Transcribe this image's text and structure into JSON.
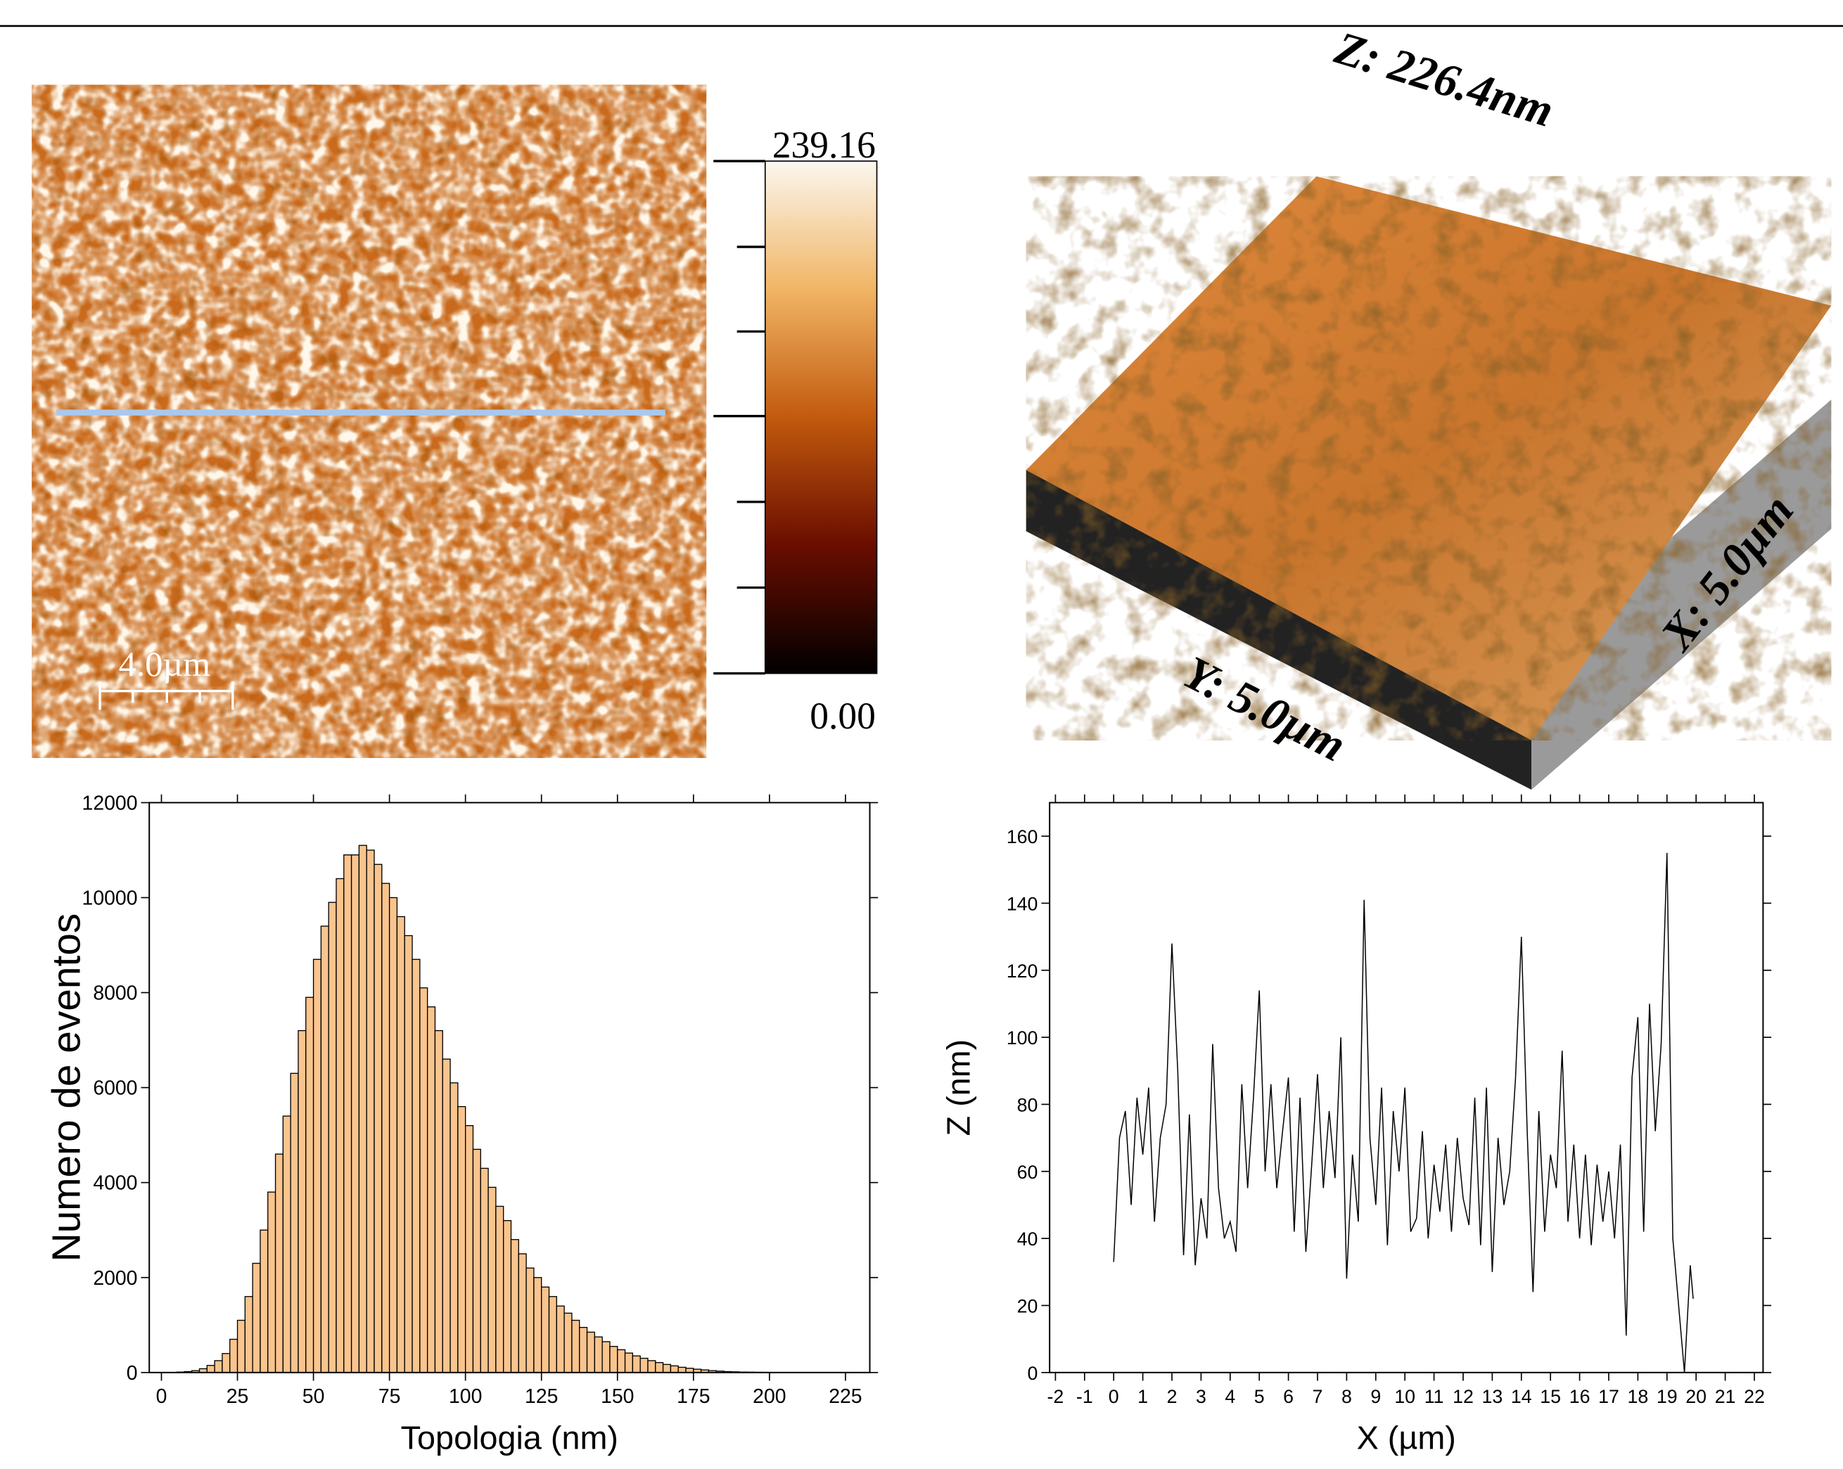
{
  "afm_map": {
    "scale_max": "239.16",
    "scale_min": "0.00",
    "scale_bar": "4.0µm"
  },
  "afm_3d": {
    "z_label": "Z: 226.4nm",
    "y_label": "Y: 5.0µm",
    "x_label": "X: 5.0µm"
  },
  "chart_data": [
    {
      "type": "histogram",
      "xlabel": "Topologia (nm)",
      "ylabel": "Numero de eventos",
      "color": "#f9c48d",
      "bins": [
        5,
        7.5,
        10,
        12.5,
        15,
        17.5,
        20,
        22.5,
        25,
        27.5,
        30,
        32.5,
        35,
        37.5,
        40,
        42.5,
        45,
        47.5,
        50,
        52.5,
        55,
        57.5,
        60,
        62.5,
        65,
        67.5,
        70,
        72.5,
        75,
        77.5,
        80,
        82.5,
        85,
        87.5,
        90,
        92.5,
        95,
        97.5,
        100,
        102.5,
        105,
        107.5,
        110,
        112.5,
        115,
        117.5,
        120,
        122.5,
        125,
        127.5,
        130,
        132.5,
        135,
        137.5,
        140,
        142.5,
        145,
        147.5,
        150,
        152.5,
        155,
        157.5,
        160,
        162.5,
        165,
        167.5,
        170,
        172.5,
        175,
        177.5,
        180,
        182.5,
        185,
        187.5,
        190,
        192.5,
        195,
        197.5,
        200
      ],
      "values": [
        10,
        20,
        40,
        80,
        150,
        250,
        400,
        700,
        1100,
        1600,
        2300,
        3000,
        3800,
        4600,
        5400,
        6300,
        7200,
        7900,
        8700,
        9400,
        9900,
        10400,
        10900,
        10900,
        11100,
        11000,
        10700,
        10300,
        10000,
        9600,
        9200,
        8700,
        8100,
        7700,
        7200,
        6600,
        6100,
        5600,
        5200,
        4700,
        4300,
        3900,
        3500,
        3200,
        2800,
        2500,
        2200,
        2000,
        1800,
        1600,
        1400,
        1250,
        1100,
        950,
        850,
        750,
        650,
        550,
        480,
        410,
        350,
        300,
        250,
        210,
        170,
        140,
        110,
        90,
        70,
        55,
        40,
        30,
        20,
        15,
        10,
        8,
        5,
        3
      ],
      "xlim": [
        -4,
        233
      ],
      "xticks": [
        0,
        25,
        50,
        75,
        100,
        125,
        150,
        175,
        200,
        225
      ],
      "ylim": [
        0,
        12000
      ],
      "yticks": [
        0,
        2000,
        4000,
        6000,
        8000,
        10000,
        12000
      ]
    },
    {
      "type": "line",
      "xlabel": "X (µm)",
      "ylabel": "Z (nm)",
      "color": "#000000",
      "x": [
        0,
        0.2,
        0.4,
        0.6,
        0.8,
        1.0,
        1.2,
        1.4,
        1.6,
        1.8,
        2.0,
        2.2,
        2.4,
        2.6,
        2.8,
        3.0,
        3.2,
        3.4,
        3.6,
        3.8,
        4.0,
        4.2,
        4.4,
        4.6,
        4.8,
        5.0,
        5.2,
        5.4,
        5.6,
        5.8,
        6.0,
        6.2,
        6.4,
        6.6,
        6.8,
        7.0,
        7.2,
        7.4,
        7.6,
        7.8,
        8.0,
        8.2,
        8.4,
        8.6,
        8.8,
        9.0,
        9.2,
        9.4,
        9.6,
        9.8,
        10.0,
        10.2,
        10.4,
        10.6,
        10.8,
        11.0,
        11.2,
        11.4,
        11.6,
        11.8,
        12.0,
        12.2,
        12.4,
        12.6,
        12.8,
        13.0,
        13.2,
        13.4,
        13.6,
        13.8,
        14.0,
        14.2,
        14.4,
        14.6,
        14.8,
        15.0,
        15.2,
        15.4,
        15.6,
        15.8,
        16.0,
        16.2,
        16.4,
        16.6,
        16.8,
        17.0,
        17.2,
        17.4,
        17.6,
        17.8,
        18.0,
        18.2,
        18.4,
        18.6,
        18.8,
        19.0,
        19.2,
        19.4,
        19.6,
        19.8,
        19.9
      ],
      "values": [
        33,
        70,
        78,
        50,
        82,
        65,
        85,
        45,
        70,
        80,
        128,
        90,
        35,
        77,
        32,
        52,
        40,
        98,
        55,
        40,
        45,
        36,
        86,
        55,
        82,
        114,
        60,
        86,
        55,
        72,
        88,
        42,
        82,
        36,
        62,
        89,
        55,
        78,
        58,
        100,
        28,
        65,
        45,
        141,
        70,
        50,
        85,
        38,
        78,
        60,
        85,
        42,
        46,
        72,
        40,
        62,
        48,
        68,
        42,
        70,
        52,
        44,
        82,
        38,
        85,
        30,
        70,
        50,
        60,
        88,
        130,
        72,
        24,
        78,
        42,
        65,
        55,
        96,
        45,
        68,
        40,
        65,
        38,
        62,
        45,
        60,
        40,
        68,
        11,
        88,
        106,
        42,
        110,
        72,
        98,
        155,
        40,
        20,
        0,
        32,
        22
      ],
      "xlim": [
        -2.2,
        22.3
      ],
      "xticks": [
        -2,
        -1,
        0,
        1,
        2,
        3,
        4,
        5,
        6,
        7,
        8,
        9,
        10,
        11,
        12,
        13,
        14,
        15,
        16,
        17,
        18,
        19,
        20,
        21,
        22
      ],
      "ylim": [
        0,
        170
      ],
      "yticks": [
        0,
        20,
        40,
        60,
        80,
        100,
        120,
        140,
        160
      ]
    }
  ]
}
